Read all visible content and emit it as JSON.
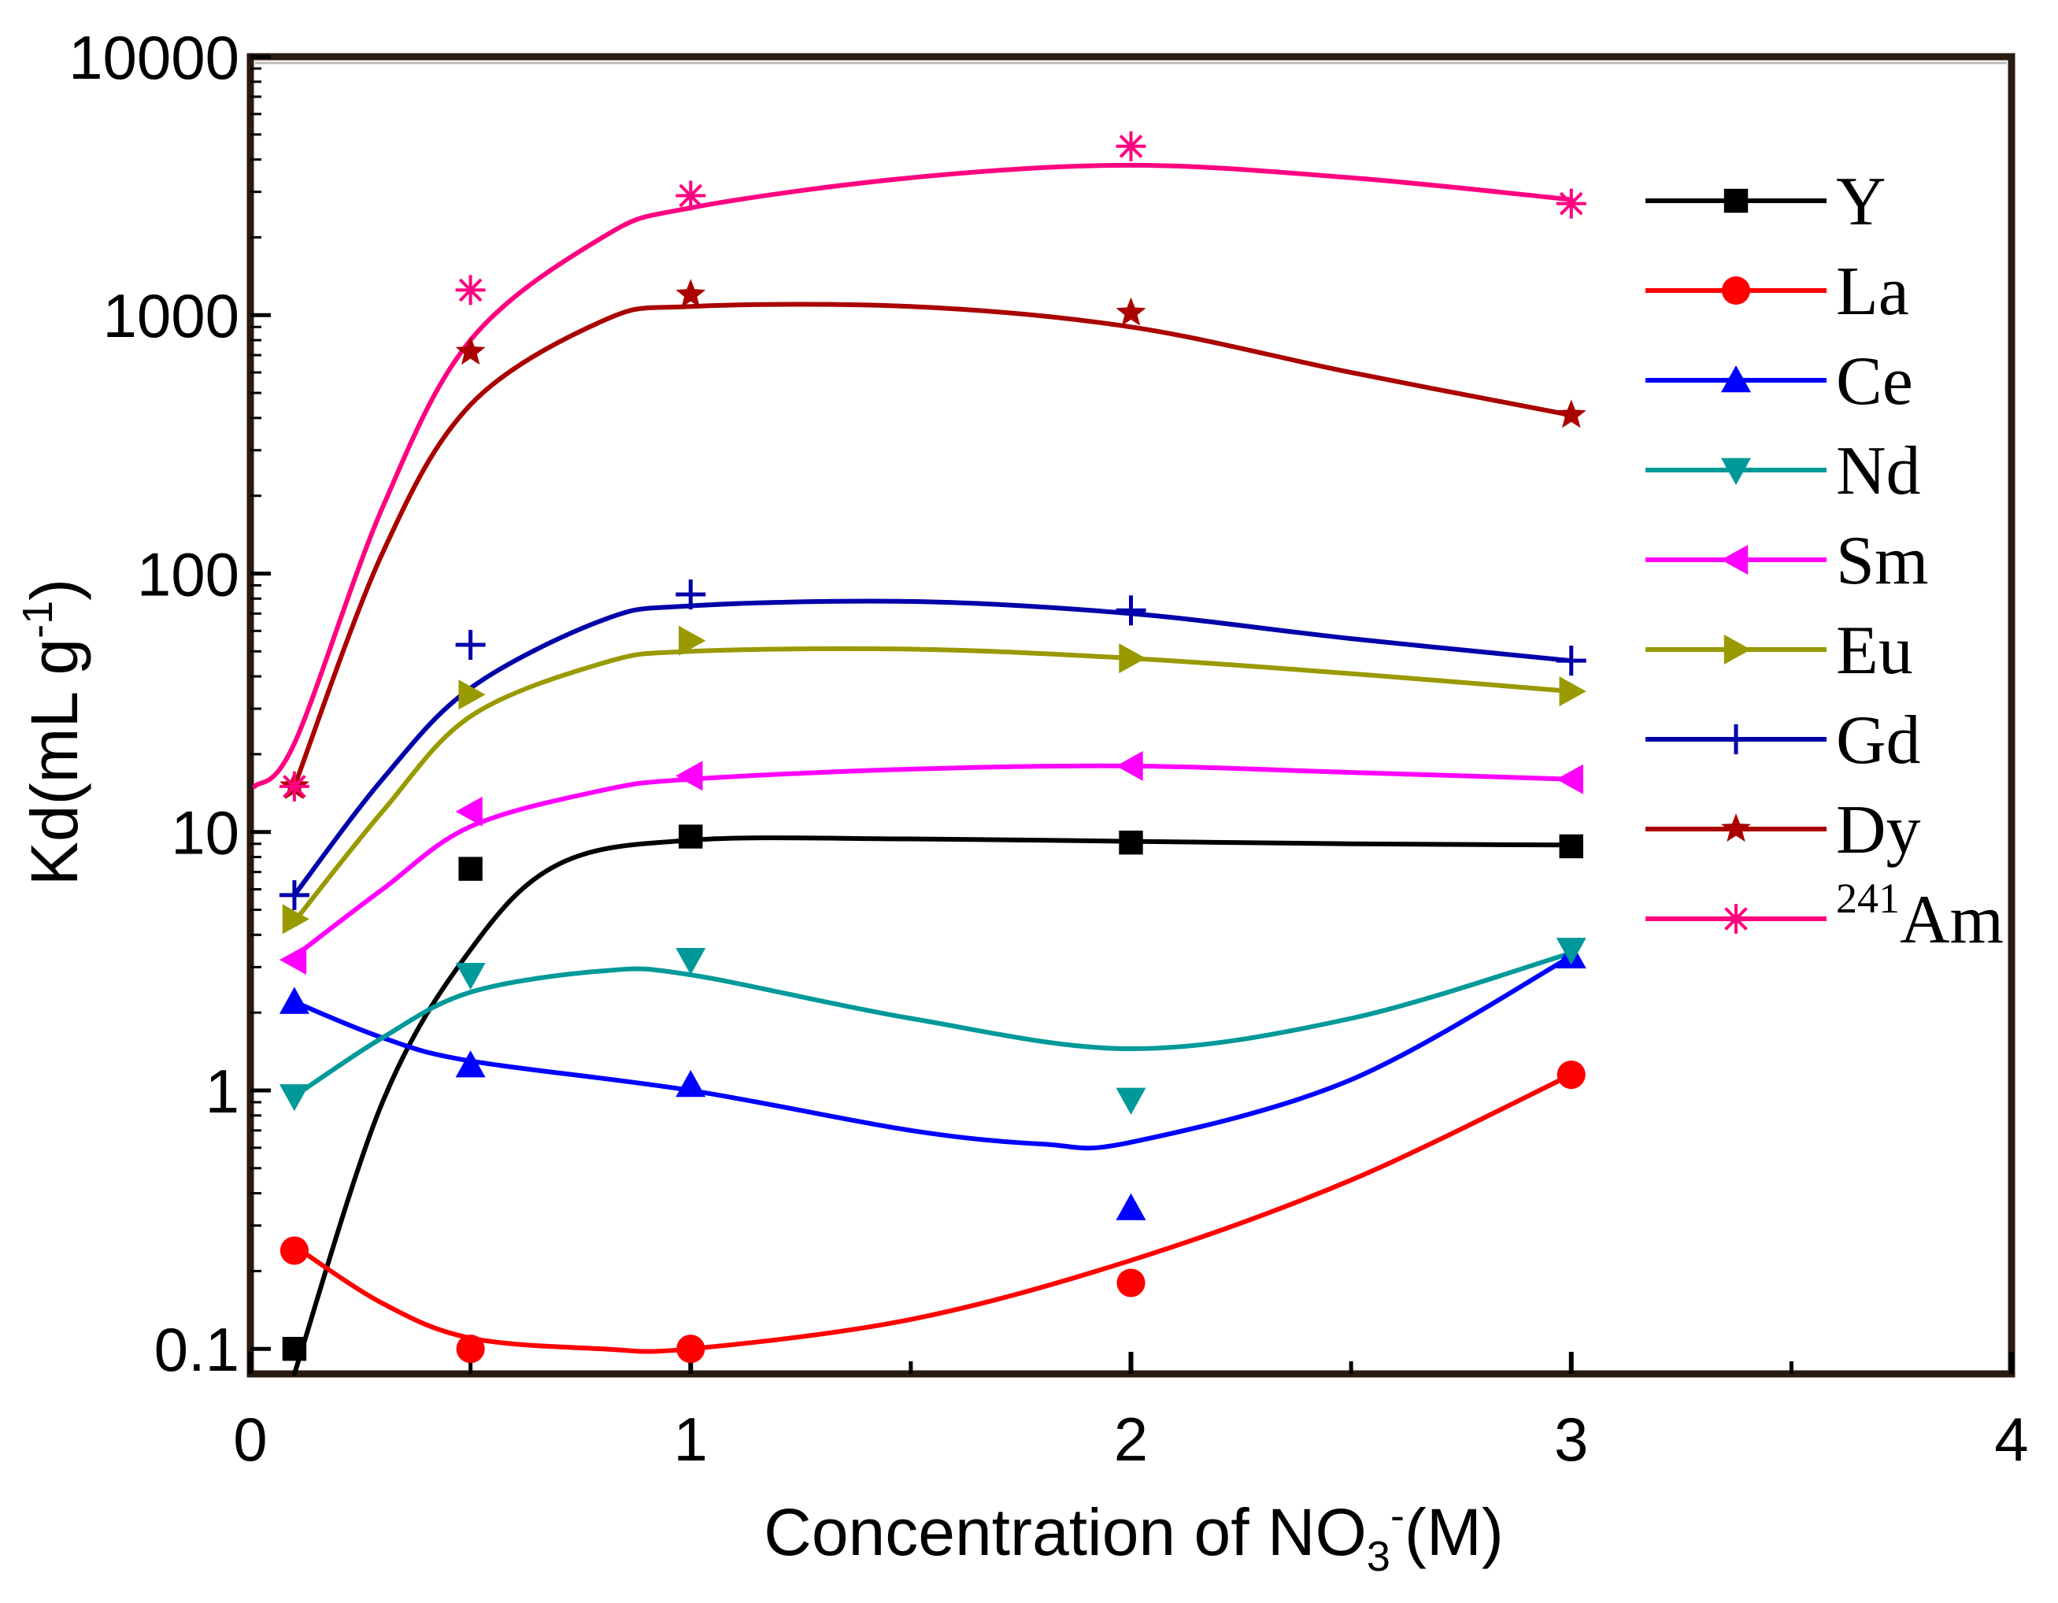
{
  "chart_data": {
    "type": "line",
    "title": "",
    "xlabel": {
      "main": "Concentration of NO",
      "sub": "3",
      "sup": "-",
      "tail": "(M)"
    },
    "ylabel": {
      "main": "Kd(mL g",
      "sup": "-1",
      "tail": ")"
    },
    "xlim": [
      0,
      4
    ],
    "ylim": [
      0.08,
      10000
    ],
    "yscale": "log",
    "xticks": [
      0,
      1,
      2,
      3,
      4
    ],
    "xtick_labels": [
      "0",
      "1",
      "2",
      "3",
      "4"
    ],
    "yticks": [
      0.1,
      1,
      10,
      100,
      1000,
      10000
    ],
    "ytick_labels": [
      "0.1",
      "1",
      "10",
      "100",
      "1000",
      "10000"
    ],
    "grid": false,
    "legend_position": "upper-right",
    "x": [
      0.1,
      0.5,
      1,
      2,
      3
    ],
    "series": [
      {
        "name": "Y",
        "sup": "",
        "color": "#000000",
        "marker": "square",
        "values": [
          0.1,
          7.2,
          9.6,
          9.1,
          8.8
        ],
        "curve": [
          [
            0.1,
            0.08
          ],
          [
            0.3,
            0.9
          ],
          [
            0.5,
            3.5
          ],
          [
            0.7,
            7.5
          ],
          [
            1,
            9.3
          ],
          [
            1.5,
            9.4
          ],
          [
            2,
            9.2
          ],
          [
            2.5,
            9.0
          ],
          [
            3,
            8.9
          ]
        ]
      },
      {
        "name": "La",
        "sup": "",
        "color": "#ff0000",
        "marker": "circle",
        "values": [
          0.24,
          0.1,
          0.1,
          0.18,
          1.15
        ],
        "curve": [
          [
            0.1,
            0.25
          ],
          [
            0.3,
            0.15
          ],
          [
            0.5,
            0.11
          ],
          [
            0.8,
            0.1
          ],
          [
            1,
            0.1
          ],
          [
            1.5,
            0.13
          ],
          [
            2,
            0.22
          ],
          [
            2.5,
            0.45
          ],
          [
            3,
            1.15
          ]
        ]
      },
      {
        "name": "Ce",
        "sup": "",
        "color": "#0000ff",
        "marker": "triangle-up",
        "values": [
          2.2,
          1.25,
          1.05,
          0.35,
          3.3
        ],
        "curve": [
          [
            0.1,
            2.2
          ],
          [
            0.3,
            1.6
          ],
          [
            0.5,
            1.3
          ],
          [
            1,
            1.0
          ],
          [
            1.5,
            0.7
          ],
          [
            1.8,
            0.62
          ],
          [
            2,
            0.63
          ],
          [
            2.5,
            1.1
          ],
          [
            3,
            3.3
          ]
        ]
      },
      {
        "name": "Nd",
        "sup": "",
        "color": "#009999",
        "marker": "triangle-down",
        "values": [
          0.95,
          2.8,
          3.2,
          0.92,
          3.5
        ],
        "curve": [
          [
            0.1,
            0.95
          ],
          [
            0.3,
            1.6
          ],
          [
            0.5,
            2.4
          ],
          [
            0.8,
            2.9
          ],
          [
            1,
            2.8
          ],
          [
            1.5,
            1.9
          ],
          [
            2,
            1.45
          ],
          [
            2.5,
            1.9
          ],
          [
            3,
            3.4
          ]
        ]
      },
      {
        "name": "Sm",
        "sup": "",
        "color": "#ff00ff",
        "marker": "triangle-left",
        "values": [
          3.2,
          12,
          16.5,
          18,
          16
        ],
        "curve": [
          [
            0.1,
            3.3
          ],
          [
            0.3,
            6.0
          ],
          [
            0.5,
            10.5
          ],
          [
            0.8,
            14.5
          ],
          [
            1,
            16.0
          ],
          [
            1.5,
            17.5
          ],
          [
            2,
            18.0
          ],
          [
            2.5,
            17.0
          ],
          [
            3,
            16.0
          ]
        ]
      },
      {
        "name": "Eu",
        "sup": "",
        "color": "#999900",
        "marker": "triangle-right",
        "values": [
          4.6,
          34,
          55,
          47,
          35
        ],
        "curve": [
          [
            0.1,
            4.5
          ],
          [
            0.3,
            12
          ],
          [
            0.5,
            28
          ],
          [
            0.8,
            45
          ],
          [
            1,
            50
          ],
          [
            1.5,
            51
          ],
          [
            2,
            47
          ],
          [
            2.5,
            41
          ],
          [
            3,
            35
          ]
        ]
      },
      {
        "name": "Gd",
        "sup": "",
        "color": "#0000aa",
        "marker": "plus",
        "values": [
          5.7,
          53,
          83,
          72,
          46
        ],
        "curve": [
          [
            0.1,
            5.7
          ],
          [
            0.3,
            16
          ],
          [
            0.5,
            36
          ],
          [
            0.8,
            66
          ],
          [
            1,
            75
          ],
          [
            1.5,
            78
          ],
          [
            2,
            70
          ],
          [
            2.5,
            56
          ],
          [
            3,
            46
          ]
        ]
      },
      {
        "name": "Dy",
        "sup": "",
        "color": "#aa0000",
        "marker": "star",
        "values": [
          15,
          720,
          1200,
          1020,
          410
        ],
        "curve": [
          [
            0.1,
            15
          ],
          [
            0.3,
            120
          ],
          [
            0.5,
            450
          ],
          [
            0.8,
            950
          ],
          [
            1,
            1080
          ],
          [
            1.5,
            1080
          ],
          [
            2,
            900
          ],
          [
            2.5,
            600
          ],
          [
            3,
            410
          ]
        ]
      },
      {
        "name": "Am",
        "sup": "241",
        "color": "#ff0080",
        "marker": "asterisk",
        "values": [
          15,
          1250,
          2900,
          4500,
          2700
        ],
        "curve": [
          [
            0.01,
            15
          ],
          [
            0.1,
            22
          ],
          [
            0.3,
            180
          ],
          [
            0.5,
            800
          ],
          [
            0.8,
            2000
          ],
          [
            1,
            2600
          ],
          [
            1.5,
            3400
          ],
          [
            2,
            3800
          ],
          [
            2.5,
            3400
          ],
          [
            3,
            2800
          ]
        ]
      }
    ]
  }
}
